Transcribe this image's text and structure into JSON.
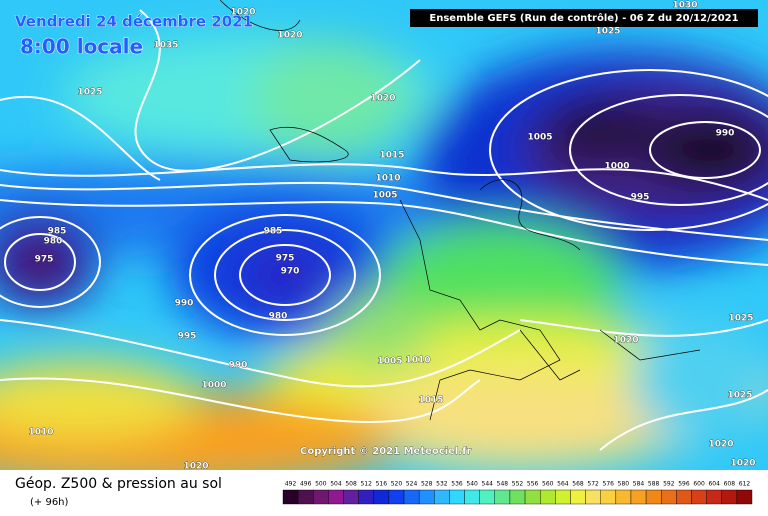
{
  "header": {
    "title": "Vendredi 24 décembre 2021",
    "subtitle": "8:00 locale",
    "run": "Ensemble GEFS  (Run de contrôle)  -  06 Z du 20/12/2021"
  },
  "isobar_labels": [
    "1020",
    "1035",
    "1025",
    "1020",
    "1020",
    "1015",
    "1010",
    "1005",
    "1025",
    "1030",
    "1005",
    "990",
    "1000",
    "995",
    "985",
    "980",
    "975",
    "985",
    "975",
    "970",
    "980",
    "990",
    "995",
    "990",
    "1000",
    "1010",
    "1020",
    "1005",
    "1010",
    "1015",
    "1020",
    "1025",
    "1025",
    "1020",
    "1020"
  ],
  "copyright": "Copyright © 2021 Meteociel.fr",
  "footer": {
    "title": "Géop. Z500 & pression au sol",
    "lead": "(+ 96h)"
  },
  "scale_labels": [
    492,
    496,
    500,
    504,
    508,
    512,
    516,
    520,
    524,
    528,
    532,
    536,
    540,
    544,
    548,
    552,
    556,
    560,
    564,
    568,
    572,
    576,
    580,
    584,
    588,
    592,
    596,
    600,
    604,
    608,
    612
  ]
}
